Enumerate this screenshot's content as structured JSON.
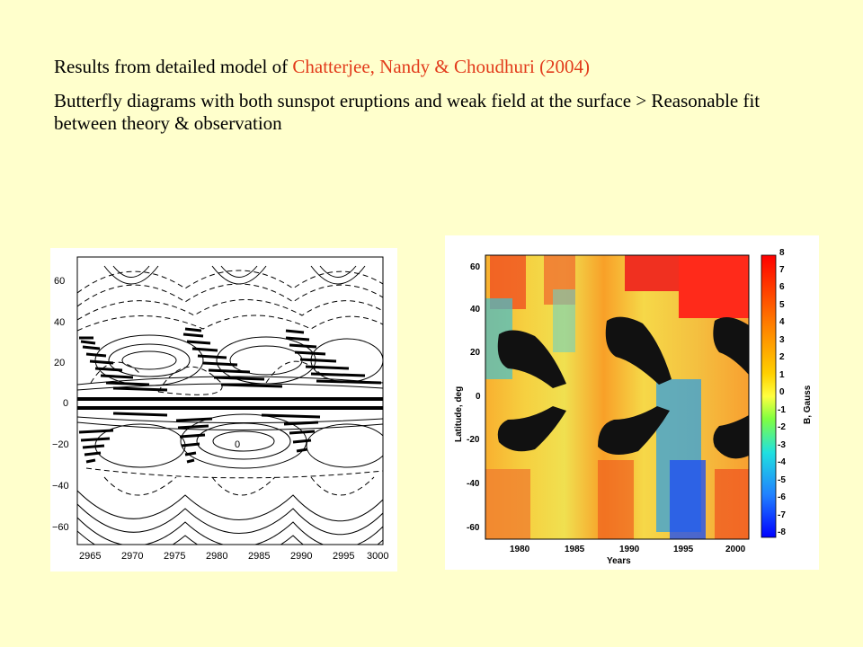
{
  "slide": {
    "line1_prefix": "Results from detailed model of ",
    "line1_citation": "Chatterjee, Nandy & Choudhuri (2004)",
    "paragraph": "Butterfly diagrams with both sunspot eruptions and weak field at the surface > Reasonable fit between theory & observation",
    "accent_color": "#e23b1b",
    "background_color": "#ffffcc"
  },
  "left_plot": {
    "y_ticks": [
      "60",
      "40",
      "20",
      "0",
      "−20",
      "−40",
      "−60"
    ],
    "x_ticks": [
      "2965",
      "2970",
      "2975",
      "2980",
      "2985",
      "2990",
      "2995",
      "3000"
    ],
    "contour_label": "0"
  },
  "right_plot": {
    "y_ticks": [
      "60",
      "40",
      "20",
      "0",
      "-20",
      "-40",
      "-60"
    ],
    "x_ticks": [
      "1980",
      "1985",
      "1990",
      "1995",
      "2000"
    ],
    "x_label": "Years",
    "y_label": "Latitude, deg",
    "colorbar_ticks": [
      "8",
      "7",
      "6",
      "5",
      "4",
      "3",
      "2",
      "1",
      "0",
      "-1",
      "-2",
      "-3",
      "-4",
      "-5",
      "-6",
      "-7",
      "-8"
    ],
    "colorbar_label": "B, Gauss"
  }
}
